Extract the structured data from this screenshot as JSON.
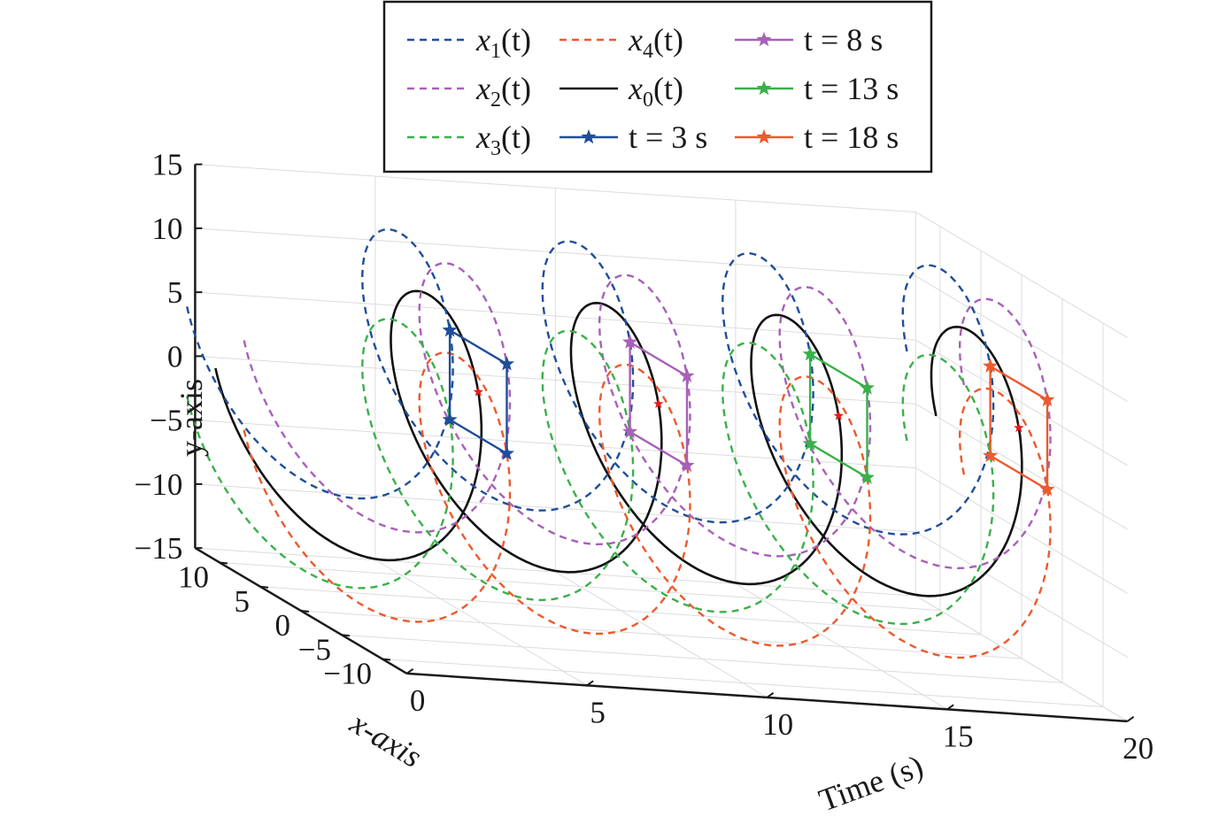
{
  "chart_data": {
    "type": "line3d",
    "title": "",
    "xlabel": "Time (s)",
    "ylabel_depth": "x-axis",
    "zlabel": "y-axis",
    "axis_labels": {
      "time": "Time (s)",
      "x": "x-axis",
      "y": "y-axis"
    },
    "xlim": [
      0,
      20
    ],
    "ylim_depth": [
      -13,
      13
    ],
    "zlim": [
      -15,
      15
    ],
    "ticks": {
      "time": [
        "0",
        "5",
        "10",
        "15",
        "20"
      ],
      "x": [
        "10",
        "5",
        "0",
        "−5",
        "−10"
      ],
      "y": [
        "15",
        "10",
        "5",
        "0",
        "−5",
        "−10",
        "−15"
      ]
    },
    "grid": true,
    "legend": {
      "placement": "top",
      "entries": [
        {
          "main": "x",
          "sub": "1",
          "suffix": "(t)",
          "color": "#1f4e9a",
          "style": "dashed"
        },
        {
          "main": "x",
          "sub": "2",
          "suffix": "(t)",
          "color": "#a860b8",
          "style": "dashed"
        },
        {
          "main": "x",
          "sub": "3",
          "suffix": "(t)",
          "color": "#3ab04a",
          "style": "dashed"
        },
        {
          "main": "x",
          "sub": "4",
          "suffix": "(t)",
          "color": "#ec5a2e",
          "style": "dashed"
        },
        {
          "main": "x",
          "sub": "0",
          "suffix": "(t)",
          "color": "#111111",
          "style": "solid"
        },
        {
          "main": "t = 3 s",
          "color": "#1f4e9a",
          "style": "star"
        },
        {
          "main": "t = 8 s",
          "color": "#a860b8",
          "style": "star"
        },
        {
          "main": "t = 13 s",
          "color": "#3ab04a",
          "style": "star"
        },
        {
          "main": "t = 18 s",
          "color": "#ec5a2e",
          "style": "star"
        }
      ]
    },
    "series": [
      {
        "name": "x0(t)",
        "color": "#111111",
        "style": "solid",
        "t_start": 0,
        "t_end": 20,
        "x_amp": 10.5,
        "y_amp": 10,
        "omega_rad_per_s": 1.2566,
        "phase_deg": 90,
        "offset_x": 0,
        "offset_y": 0
      },
      {
        "name": "x1(t)",
        "color": "#1f4e9a",
        "style": "dashed",
        "t_start": 0,
        "t_end": 20,
        "x_amp": 10.5,
        "y_amp": 10,
        "omega_rad_per_s": 1.2566,
        "phase_deg": 90,
        "offset_x": 3.5,
        "offset_y": 3.5
      },
      {
        "name": "x2(t)",
        "color": "#a860b8",
        "style": "dashed",
        "t_start": 0,
        "t_end": 20,
        "x_amp": 10.5,
        "y_amp": 10,
        "omega_rad_per_s": 1.2566,
        "phase_deg": 90,
        "offset_x": -3.5,
        "offset_y": 3.5
      },
      {
        "name": "x3(t)",
        "color": "#3ab04a",
        "style": "dashed",
        "t_start": 0,
        "t_end": 20,
        "x_amp": 10.5,
        "y_amp": 10,
        "omega_rad_per_s": 1.2566,
        "phase_deg": 90,
        "offset_x": 3.5,
        "offset_y": -3.5
      },
      {
        "name": "x4(t)",
        "color": "#ec5a2e",
        "style": "dashed",
        "t_start": 0,
        "t_end": 20,
        "x_amp": 10.5,
        "y_amp": 10,
        "omega_rad_per_s": 1.2566,
        "phase_deg": 90,
        "offset_x": -3.5,
        "offset_y": -3.5
      }
    ],
    "formation_snapshots": [
      {
        "t": 3,
        "color": "#1f4e9a"
      },
      {
        "t": 8,
        "color": "#a860b8"
      },
      {
        "t": 13,
        "color": "#3ab04a"
      },
      {
        "t": 18,
        "color": "#ec5a2e"
      }
    ],
    "center_marker_color": "#e41a1c"
  }
}
